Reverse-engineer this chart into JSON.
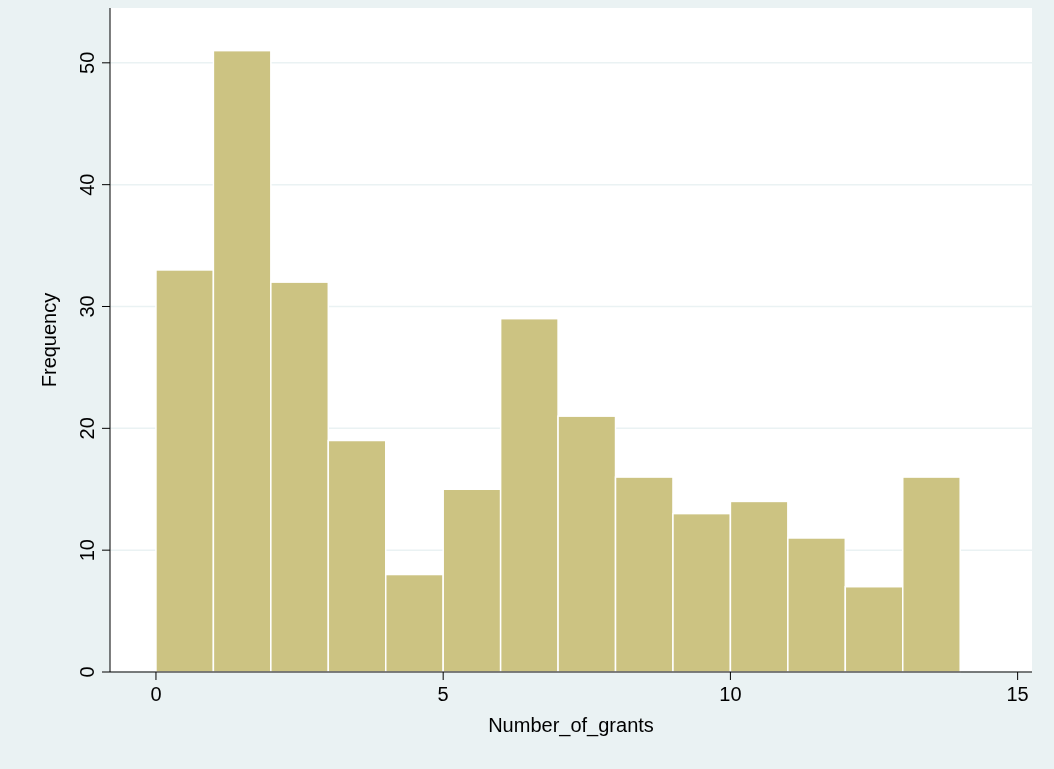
{
  "chart_data": {
    "type": "histogram",
    "xlabel": "Number_of_grants",
    "ylabel": "Frequency",
    "bins": [
      0,
      1,
      2,
      3,
      4,
      5,
      6,
      7,
      8,
      9,
      10,
      11,
      12,
      13,
      14
    ],
    "values": [
      33,
      51,
      32,
      19,
      8,
      15,
      29,
      21,
      16,
      13,
      14,
      11,
      7,
      16
    ],
    "color": "#ccc382",
    "xlim": [
      -0.8,
      15.25
    ],
    "xticks": [
      0,
      5,
      10,
      15
    ],
    "ylim": [
      0,
      54.5
    ],
    "yticks": [
      0,
      10,
      20,
      30,
      40,
      50
    ],
    "grid": "y"
  }
}
